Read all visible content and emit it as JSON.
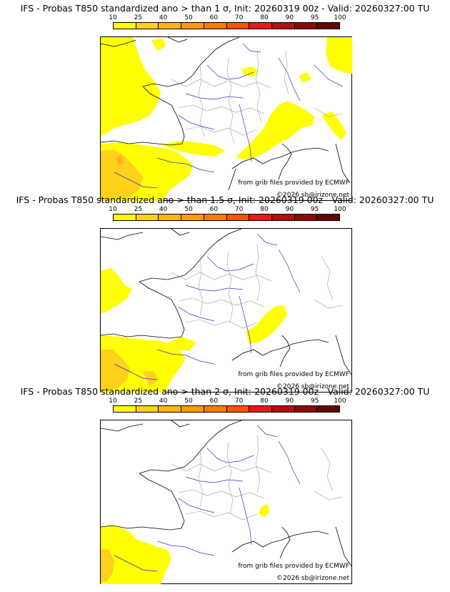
{
  "colorbar": {
    "labels": [
      "10",
      "25",
      "40",
      "50",
      "60",
      "70",
      "80",
      "90",
      "95",
      "100"
    ],
    "colors": [
      "#ffff00",
      "#ffd11a",
      "#ffb31a",
      "#ff9900",
      "#ff7a00",
      "#ff5500",
      "#e61a1a",
      "#b30f0f",
      "#8c0a0a",
      "#660606"
    ]
  },
  "panels": [
    {
      "title": "IFS - Probas T850  standardized ano > than 1 σ, Init: 20260319 00z - Valid: 20260327:00 TU"
    },
    {
      "title": "IFS - Probas T850  standardized ano > than 1.5 σ, Init: 20260319 00z - Valid: 20260327:00 TU"
    },
    {
      "title": "IFS - Probas T850  standardized ano > than 2 σ, Init: 20260319 00z - Valid: 20260327:00 TU"
    }
  ],
  "credits": {
    "source": "from grib files provided by ECMWF",
    "copyright": "©2026 sb@irizone.net"
  },
  "colors": {
    "coast": "#000000",
    "rivers": "#3333cc",
    "borders": "#999999",
    "prob_low": "#ffff00",
    "prob_mid": "#ffd11a"
  }
}
